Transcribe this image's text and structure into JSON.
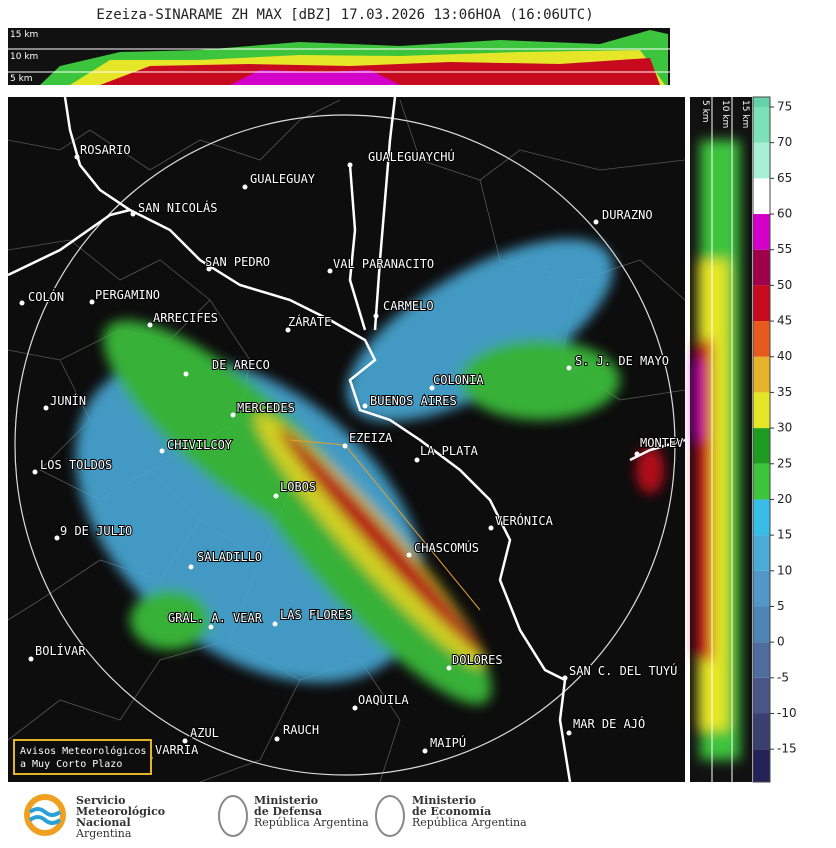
{
  "title": "Ezeiza-SINARAME ZH MAX [dBZ] 17.03.2026 13:06HOA (16:06UTC)",
  "top_profile": {
    "labels": [
      "15 km",
      "10 km",
      "5 km"
    ]
  },
  "side_profile": {
    "labels": [
      "5 km",
      "10 km",
      "15 km"
    ]
  },
  "cities": [
    "ROSARIO",
    "GUALEGUAYCHÚ",
    "GUALEGUAY",
    "SAN NICOLÁS",
    "DURAZNO",
    "SAN PEDRO",
    "VAL PARANACITO",
    "COLÓN",
    "PERGAMINO",
    "CARMELO",
    "ARRECIFES",
    "ZÁRATE",
    "S. J. DE MAYO",
    "DE ARECO",
    "COLONIA",
    "JUNÍN",
    "BUENOS AIRES",
    "MERCEDES",
    "MONTEV",
    "CHIVILCOY",
    "EZEIZA",
    "LA PLATA",
    "LOS TOLDOS",
    "LOBOS",
    "VERÓNICA",
    "9 DE JULIO",
    "CHASCOMÚS",
    "SALADILLO",
    "GRAL. A. VEAR",
    "LAS FLORES",
    "BOLÍVAR",
    "DOLORES",
    "SAN C. DEL TUYÚ",
    "OAQUILA",
    "MAR DE AJÓ",
    "RAUCH",
    "AZUL",
    "VARRIA",
    "MAIPÚ"
  ],
  "notice": [
    "Avisos Meteorológicos",
    "a Muy Corto Plazo"
  ],
  "colorbar": {
    "lim": [
      -19.6,
      76.4
    ],
    "ticks": [
      -15,
      -10,
      -5,
      0,
      5,
      10,
      15,
      20,
      25,
      30,
      35,
      40,
      45,
      50,
      55,
      60,
      65,
      70,
      75
    ],
    "colors": [
      "#23235a",
      "#3a3f72",
      "#4a5688",
      "#4e6c9e",
      "#4f84b6",
      "#5198c8",
      "#4aaad8",
      "#38bce8",
      "#3cc43c",
      "#1e9c22",
      "#e6e628",
      "#e6b428",
      "#e65a1e",
      "#c80a1e",
      "#a0004a",
      "#d200c8",
      "#ffffff",
      "#a8f0d4",
      "#7ee0b8",
      "#64d4a8"
    ]
  },
  "logos": [
    {
      "lines": [
        "Servicio",
        "Meteorológico",
        "Nacional",
        "Argentina"
      ]
    },
    {
      "lines": [
        "Ministerio",
        "de Defensa",
        "República Argentina"
      ]
    },
    {
      "lines": [
        "Ministerio",
        "de Economía",
        "República Argentina"
      ]
    }
  ]
}
